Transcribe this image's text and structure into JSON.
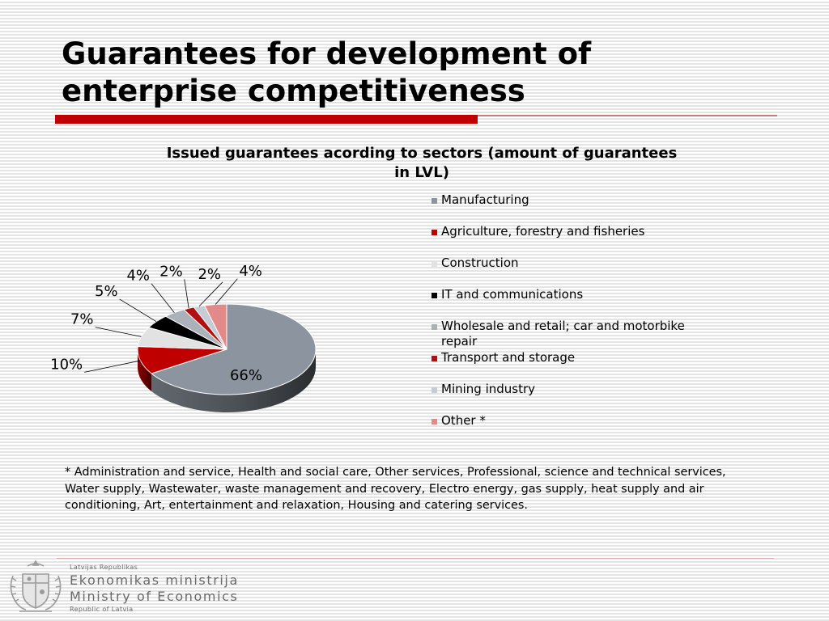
{
  "slide": {
    "title_line1": "Guarantees for development of",
    "title_line2": "enterprise competitiveness",
    "footnote": "* Administration and service, Health and social care, Other services, Professional, science and technical services, Water supply, Wastewater, waste management and recovery, Electro energy, gas supply, heat supply and air conditioning, Art, entertainment and relaxation, Housing and catering services."
  },
  "footer": {
    "line_small_top": "Latvijas Republikas",
    "line_big1": "Ekonomikas ministrija",
    "line_big2": "Ministry of Economics",
    "line_small_bottom": "Republic of Latvia"
  },
  "colors": {
    "accent_red": "#c00000"
  },
  "chart_data": {
    "type": "pie",
    "title_line1": "Issued guarantees acording to sectors (amount of  guarantees",
    "title_line2": "in LVL)",
    "legend_position": "right",
    "three_d": true,
    "slices": [
      {
        "name": "Manufacturing",
        "value": 66,
        "label": "66%",
        "color": "#8c959f"
      },
      {
        "name": "Agriculture, forestry and fisheries",
        "value": 10,
        "label": "10%",
        "color": "#c00000"
      },
      {
        "name": "Construction",
        "value": 7,
        "label": "7%",
        "color": "#e2e2e2"
      },
      {
        "name": "IT and communications",
        "value": 5,
        "label": "5%",
        "color": "#000000"
      },
      {
        "name": "Wholesale and retail; car and motorbike repair",
        "value": 4,
        "label": "4%",
        "color": "#aab1b8"
      },
      {
        "name": "Transport and storage",
        "value": 2,
        "label": "2%",
        "color": "#b01010"
      },
      {
        "name": "Mining industry",
        "value": 2,
        "label": "2%",
        "color": "#c5ccd6"
      },
      {
        "name": "Other *",
        "value": 4,
        "label": "4%",
        "color": "#e28a8a"
      }
    ]
  }
}
